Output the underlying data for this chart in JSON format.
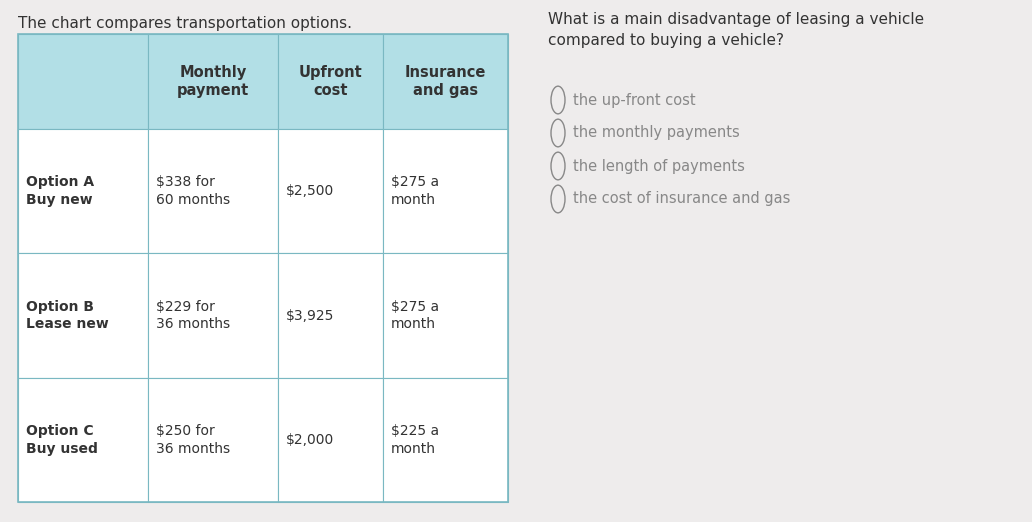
{
  "intro_text": "The chart compares transportation options.",
  "question_text": "What is a main disadvantage of leasing a vehicle\ncompared to buying a vehicle?",
  "header_row": [
    "",
    "Monthly\npayment",
    "Upfront\ncost",
    "Insurance\nand gas"
  ],
  "rows": [
    [
      "Option A\nBuy new",
      "$338 for\n60 months",
      "$2,500",
      "$275 a\nmonth"
    ],
    [
      "Option B\nLease new",
      "$229 for\n36 months",
      "$3,925",
      "$275 a\nmonth"
    ],
    [
      "Option C\nBuy used",
      "$250 for\n36 months",
      "$2,000",
      "$225 a\nmonth"
    ]
  ],
  "choices": [
    "the up-front cost",
    "the monthly payments",
    "the length of payments",
    "the cost of insurance and gas"
  ],
  "header_bg": "#b2dfe6",
  "row_bg": "#ffffff",
  "border_color": "#7ab8c2",
  "text_color": "#333333",
  "choice_text_color": "#888888",
  "bg_color": "#eeecec"
}
